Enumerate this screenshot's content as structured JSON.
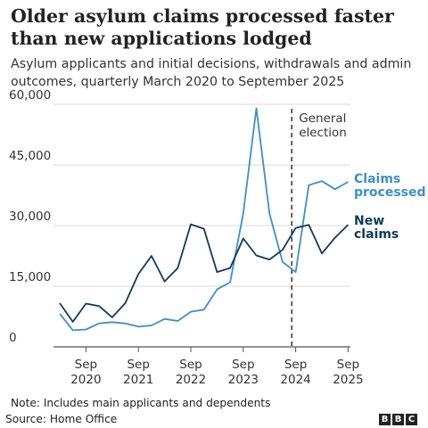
{
  "title": "Older asylum claims processed faster than new applications lodged",
  "subtitle": "Asylum applicants and initial decisions, withdrawals and admin outcomes, quarterly March 2020 to September 2025",
  "note": "Note: Includes main applicants and dependents",
  "source": "Source: Home Office",
  "logo": [
    "B",
    "B",
    "C"
  ],
  "chart_data": {
    "type": "line",
    "x": [
      "Mar 2020",
      "Jun 2020",
      "Sep 2020",
      "Dec 2020",
      "Mar 2021",
      "Jun 2021",
      "Sep 2021",
      "Dec 2021",
      "Mar 2022",
      "Jun 2022",
      "Sep 2022",
      "Dec 2022",
      "Mar 2023",
      "Jun 2023",
      "Sep 2023",
      "Dec 2023",
      "Mar 2024",
      "Jun 2024",
      "Sep 2024",
      "Dec 2024",
      "Mar 2025",
      "Jun 2025",
      "Sep 2025"
    ],
    "x_tick_labels": [
      {
        "month": "Sep",
        "year": "2020",
        "index": 2
      },
      {
        "month": "Sep",
        "year": "2021",
        "index": 6
      },
      {
        "month": "Sep",
        "year": "2022",
        "index": 10
      },
      {
        "month": "Sep",
        "year": "2023",
        "index": 14
      },
      {
        "month": "Sep",
        "year": "2024",
        "index": 18
      },
      {
        "month": "Sep",
        "year": "2025",
        "index": 22
      }
    ],
    "y_ticks": [
      0,
      15000,
      30000,
      45000,
      60000
    ],
    "y_tick_labels": [
      "0",
      "15,000",
      "30,000",
      "45,000",
      "60,000"
    ],
    "ylim": [
      0,
      60000
    ],
    "series": [
      {
        "name": "Claims processed",
        "label_lines": [
          "Claims",
          "processed"
        ],
        "color": "#3d8fc9",
        "values": [
          8200,
          4100,
          4300,
          5800,
          6100,
          5800,
          5000,
          5300,
          6900,
          6400,
          8700,
          9200,
          14200,
          16000,
          33000,
          59000,
          33000,
          21000,
          18500,
          40000,
          41000,
          39000,
          40800
        ]
      },
      {
        "name": "New claims",
        "label_lines": [
          "New",
          "claims"
        ],
        "color": "#0e3a5c",
        "values": [
          10800,
          6200,
          10700,
          10100,
          7300,
          10800,
          18000,
          22500,
          16200,
          19500,
          30300,
          29200,
          18500,
          19500,
          26800,
          22600,
          21600,
          24000,
          29400,
          30200,
          23100,
          27000,
          30200
        ]
      }
    ],
    "annotation": {
      "label_lines": [
        "General",
        "election"
      ],
      "x_index": 17.7
    }
  }
}
